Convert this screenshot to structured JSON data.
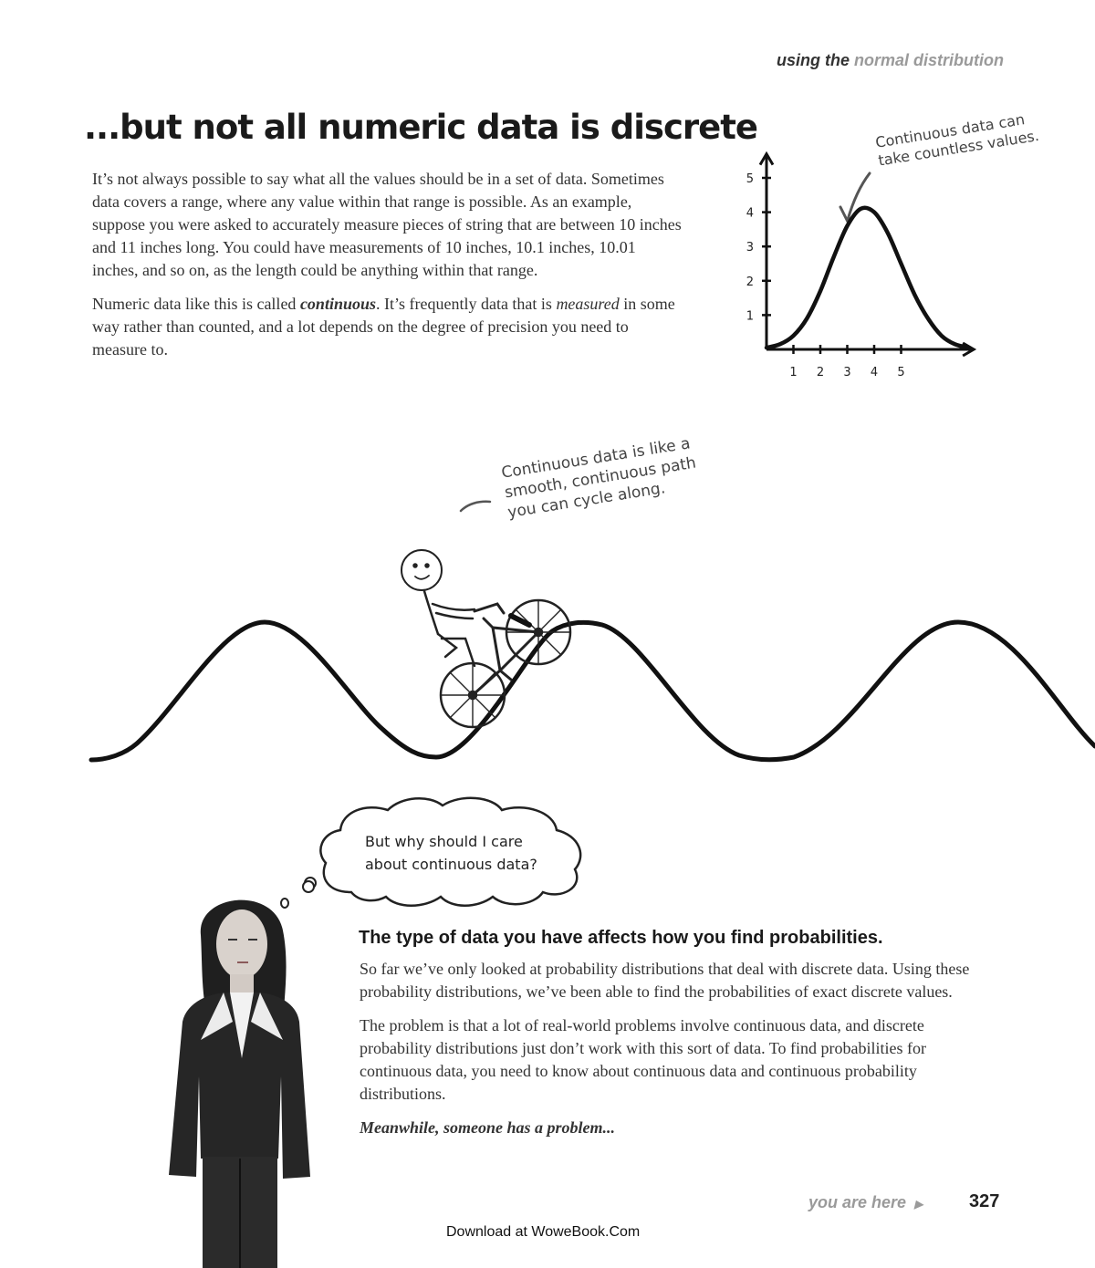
{
  "header": {
    "running_head_prefix": "using the",
    "running_head_accent": "normal distribution"
  },
  "title": "...but not all numeric data is discrete",
  "intro": {
    "p1": "It’s not always possible to say what all the values should be in a set of data. Sometimes data covers a range, where any value within that range is possible. As an example, suppose you were asked to accurately measure pieces of string that are between 10 inches and 11 inches long. You could have measurements of 10 inches, 10.1 inches, 10.01 inches, and so on, as the length could be anything within that range.",
    "p2_before": "Numeric data like this is called ",
    "p2_bold": "continuous",
    "p2_middle": ". It’s frequently data that is ",
    "p2_italic": "measured",
    "p2_after": " in some way rather than counted, and a lot depends on the degree of precision you need to measure to."
  },
  "chart_annotation": {
    "line1": "Continuous data can",
    "line2": "take countless values."
  },
  "chart_data": {
    "type": "line",
    "x_ticks": [
      "1",
      "2",
      "3",
      "4",
      "5"
    ],
    "y_ticks": [
      "1",
      "2",
      "3",
      "4",
      "5"
    ],
    "xlim": [
      0,
      7.7
    ],
    "ylim": [
      0,
      5.7
    ],
    "series": [
      {
        "x": [
          0,
          0.5,
          1,
          1.5,
          2,
          2.5,
          3,
          3.5,
          4,
          4.5,
          5,
          5.5,
          6,
          6.5,
          7,
          7.5
        ],
        "values": [
          0.05,
          0.15,
          0.4,
          0.9,
          1.7,
          2.7,
          3.6,
          4.1,
          4.0,
          3.4,
          2.5,
          1.6,
          0.9,
          0.4,
          0.15,
          0.05
        ]
      }
    ],
    "grid": false
  },
  "bike_annotation": {
    "line1": "Continuous data is like a",
    "line2": "smooth, continuous path",
    "line3": "you can cycle along."
  },
  "thought_bubble": {
    "line1": "But why should I care",
    "line2": "about continuous data?"
  },
  "section2": {
    "heading": "The type of data you have affects how you find probabilities.",
    "p1": "So far we’ve only looked at probability distributions that deal with discrete data. Using these probability distributions, we’ve been able to find the probabilities of exact discrete values.",
    "p2": "The problem is that a lot of real-world problems involve continuous data, and discrete probability distributions just don’t work with this sort of data. To find probabilities for continuous data, you need to know about continuous data and continuous probability distributions.",
    "kicker": "Meanwhile, someone has a problem..."
  },
  "footer": {
    "you_are_here": "you are here",
    "page_number": "327",
    "download": "Download at WoweBook.Com"
  }
}
